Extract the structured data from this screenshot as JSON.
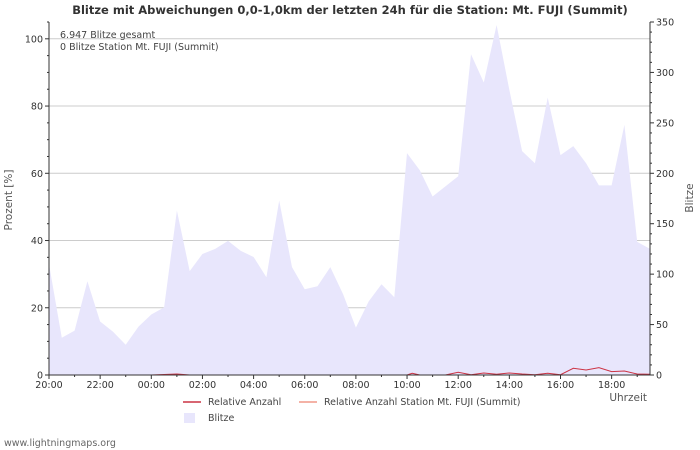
{
  "colors": {
    "area": "#e8e6fc",
    "relative": "#cc3344",
    "relative_station": "#f09988",
    "grid": "#cccccc",
    "axis": "#333333"
  },
  "chart_data": {
    "type": "area",
    "title": "Blitze mit Abweichungen 0,0-1,0km der letzten 24h für die Station: Mt. FUJI (Summit)",
    "info_lines": [
      "6.947 Blitze gesamt",
      "0 Blitze Station Mt. FUJI (Summit)"
    ],
    "ylabel_left": "Prozent   [%]",
    "ylabel_right": "Blitze",
    "xlabel": "Uhrzeit",
    "ylim_left": [
      0,
      105
    ],
    "yticks_left": [
      0,
      20,
      40,
      60,
      80,
      100
    ],
    "ylim_right": [
      0,
      350
    ],
    "yticks_right": [
      0,
      50,
      100,
      150,
      200,
      250,
      300,
      350
    ],
    "xlim_hours": [
      0,
      23.5
    ],
    "x_tick_labels": [
      {
        "h": 0,
        "label": "20:00"
      },
      {
        "h": 2,
        "label": "22:00"
      },
      {
        "h": 4,
        "label": "00:00"
      },
      {
        "h": 6,
        "label": "02:00"
      },
      {
        "h": 8,
        "label": "04:00"
      },
      {
        "h": 10,
        "label": "06:00"
      },
      {
        "h": 12,
        "label": "08:00"
      },
      {
        "h": 14,
        "label": "10:00"
      },
      {
        "h": 16,
        "label": "12:00"
      },
      {
        "h": 18,
        "label": "14:00"
      },
      {
        "h": 20,
        "label": "16:00"
      },
      {
        "h": 22,
        "label": "18:00"
      }
    ],
    "series": [
      {
        "name": "Blitze",
        "axis": "right",
        "style": "area",
        "points": [
          [
            0,
            110
          ],
          [
            0.5,
            37
          ],
          [
            1,
            44
          ],
          [
            1.5,
            93
          ],
          [
            2,
            53
          ],
          [
            2.5,
            43
          ],
          [
            3,
            30
          ],
          [
            3.5,
            48
          ],
          [
            4,
            60
          ],
          [
            4.5,
            67
          ],
          [
            5,
            163
          ],
          [
            5.5,
            103
          ],
          [
            6,
            120
          ],
          [
            6.5,
            125
          ],
          [
            7,
            133
          ],
          [
            7.5,
            123
          ],
          [
            8,
            117
          ],
          [
            8.5,
            97
          ],
          [
            9,
            173
          ],
          [
            9.5,
            107
          ],
          [
            10,
            85
          ],
          [
            10.5,
            88
          ],
          [
            11,
            107
          ],
          [
            11.5,
            80
          ],
          [
            12,
            47
          ],
          [
            12.5,
            73
          ],
          [
            13,
            90
          ],
          [
            13.5,
            77
          ],
          [
            14,
            220
          ],
          [
            14.5,
            203
          ],
          [
            15,
            177
          ],
          [
            15.5,
            187
          ],
          [
            16,
            197
          ],
          [
            16.5,
            318
          ],
          [
            17,
            290
          ],
          [
            17.5,
            347
          ],
          [
            18,
            283
          ],
          [
            18.5,
            222
          ],
          [
            19,
            210
          ],
          [
            19.5,
            275
          ],
          [
            20,
            218
          ],
          [
            20.5,
            227
          ],
          [
            21,
            210
          ],
          [
            21.5,
            188
          ],
          [
            22,
            188
          ],
          [
            22.5,
            248
          ],
          [
            23,
            132
          ],
          [
            23.5,
            125
          ]
        ]
      },
      {
        "name": "Relative Anzahl",
        "axis": "left",
        "style": "line",
        "points": [
          [
            0,
            0
          ],
          [
            4,
            0
          ],
          [
            5,
            0.3
          ],
          [
            5.5,
            0
          ],
          [
            14,
            0
          ],
          [
            14.2,
            0.5
          ],
          [
            14.5,
            0
          ],
          [
            15.5,
            0
          ],
          [
            16,
            0.8
          ],
          [
            16.5,
            0.1
          ],
          [
            17,
            0.6
          ],
          [
            17.5,
            0.2
          ],
          [
            18,
            0.6
          ],
          [
            18.5,
            0.3
          ],
          [
            19,
            0.1
          ],
          [
            19.5,
            0.5
          ],
          [
            20,
            0.1
          ],
          [
            20.5,
            2.0
          ],
          [
            21,
            1.5
          ],
          [
            21.5,
            2.2
          ],
          [
            22,
            1.0
          ],
          [
            22.5,
            1.2
          ],
          [
            23,
            0.3
          ],
          [
            23.5,
            0.2
          ]
        ]
      },
      {
        "name": "Relative Anzahl Station Mt. FUJI (Summit)",
        "axis": "left",
        "style": "line",
        "points": [
          [
            0,
            0
          ],
          [
            23.5,
            0
          ]
        ]
      }
    ],
    "legend": [
      {
        "label": "Relative Anzahl",
        "kind": "line",
        "color_key": "relative"
      },
      {
        "label": "Relative Anzahl Station Mt. FUJI (Summit)",
        "kind": "line",
        "color_key": "relative_station"
      },
      {
        "label": "Blitze",
        "kind": "box",
        "color_key": "area"
      }
    ]
  },
  "footer": {
    "credit": "www.lightningmaps.org"
  }
}
